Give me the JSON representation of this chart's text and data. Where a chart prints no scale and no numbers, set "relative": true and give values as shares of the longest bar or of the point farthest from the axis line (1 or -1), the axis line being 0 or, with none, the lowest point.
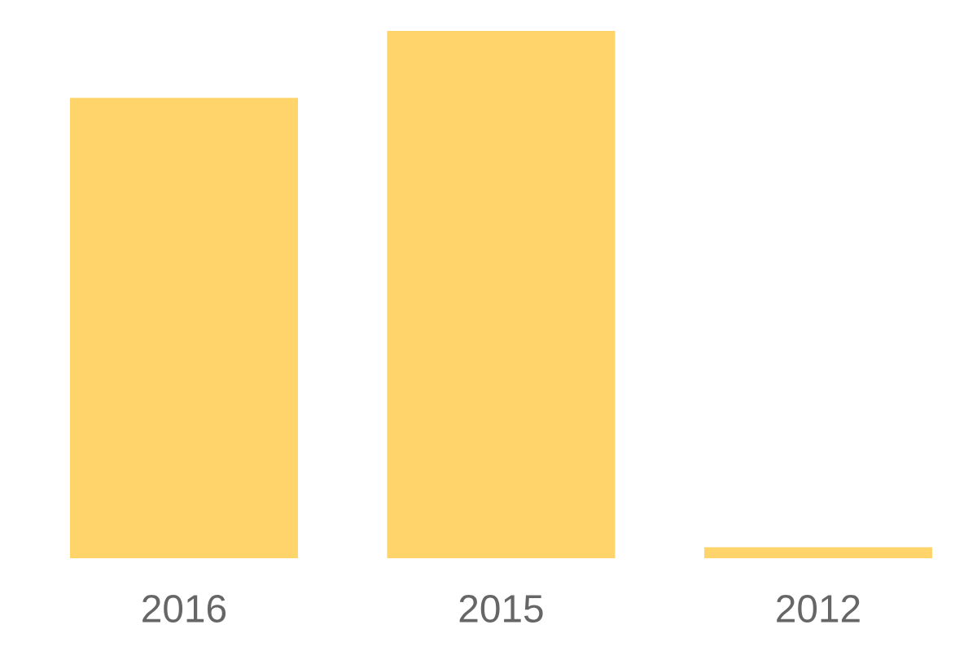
{
  "chart_data": {
    "type": "bar",
    "categories": [
      "2016",
      "2015",
      "2012"
    ],
    "values": [
      0.873,
      1,
      0.021
    ],
    "color": "#ffd56b",
    "relative": true
  }
}
